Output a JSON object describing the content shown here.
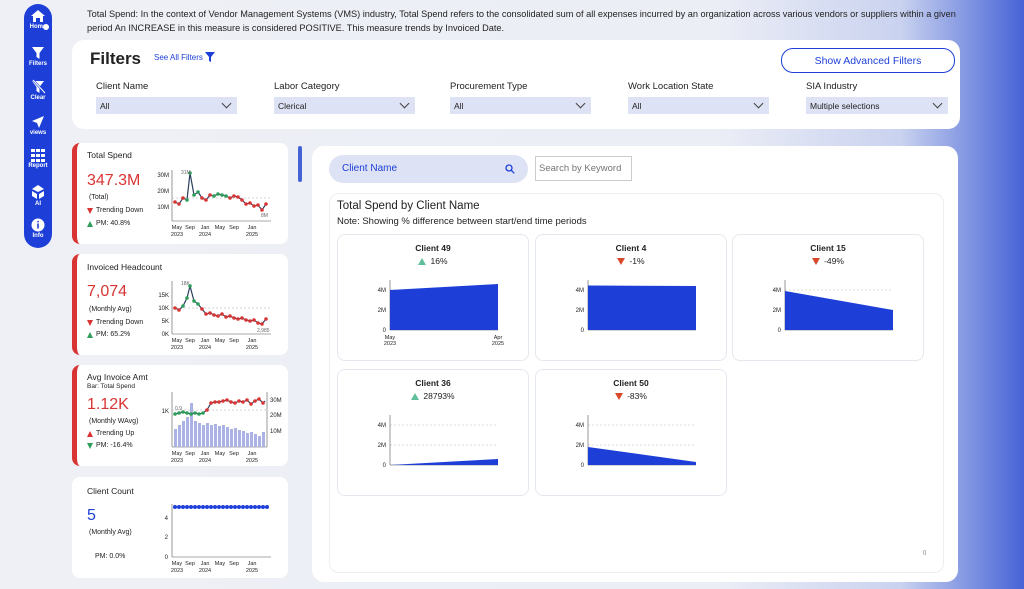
{
  "nav": [
    {
      "label": "Home",
      "icon": "home-icon"
    },
    {
      "label": "Filters",
      "icon": "filter-icon"
    },
    {
      "label": "Clear",
      "icon": "clear-filter-icon"
    },
    {
      "label": "views",
      "icon": "send-icon"
    },
    {
      "label": "Report",
      "icon": "grid-icon"
    },
    {
      "label": "AI",
      "icon": "ai-icon"
    },
    {
      "label": "Info",
      "icon": "info-icon"
    }
  ],
  "description": "Total Spend: In the context of Vendor Management Systems (VMS) industry, Total Spend refers to the consolidated sum of all expenses incurred by an organization across various vendors or suppliers within a given period An INCREASE in this measure is considered POSITIVE. This measure trends by Invoiced Date.",
  "filters": {
    "title": "Filters",
    "see_all": "See All Filters",
    "advanced_button": "Show Advanced Filters",
    "items": [
      {
        "label": "Client Name",
        "value": "All"
      },
      {
        "label": "Labor Category",
        "value": "Clerical"
      },
      {
        "label": "Procurement Type",
        "value": "All"
      },
      {
        "label": "Work Location State",
        "value": "All"
      },
      {
        "label": "SIA Industry",
        "value": "Multiple selections"
      }
    ]
  },
  "kpis": {
    "total_spend": {
      "title": "Total Spend",
      "value": "347.3M",
      "note": "(Total)",
      "trend": "Trending Down",
      "pm": "PM: 40.8%",
      "y_ticks": [
        "30M",
        "20M",
        "10M"
      ],
      "peak_label": "31M",
      "end_label": "8M",
      "x_ticks": [
        "May",
        "Sep",
        "Jan",
        "May",
        "Sep",
        "Jan"
      ],
      "years": [
        "2023",
        "2024",
        "2025"
      ]
    },
    "invoiced_headcount": {
      "title": "Invoiced Headcount",
      "value": "7,074",
      "note": "(Monthly Avg)",
      "trend": "Trending Down",
      "pm": "PM: 65.2%",
      "y_ticks": [
        "15K",
        "10K",
        "5K",
        "0K"
      ],
      "peak_label": "18K",
      "end_label": "2,985",
      "x_ticks": [
        "May",
        "Sep",
        "Jan",
        "May",
        "Sep",
        "Jan"
      ],
      "years": [
        "2023",
        "2024",
        "2025"
      ]
    },
    "avg_invoice": {
      "title": "Avg Invoice Amt",
      "subtitle": "Bar: Total Spend",
      "value": "1.12K",
      "note": "(Monthly WAvg)",
      "trend": "Trending Up",
      "pm": "PM: -16.4%",
      "y_ticks_left": [
        "1K"
      ],
      "y_ticks_right": [
        "30M",
        "20M",
        "10M"
      ],
      "start_label": "0.9",
      "x_ticks": [
        "May",
        "Sep",
        "Jan",
        "May",
        "Sep",
        "Jan"
      ],
      "years": [
        "2023",
        "2024",
        "2025"
      ]
    },
    "client_count": {
      "title": "Client Count",
      "value": "5",
      "note": "(Monthly Avg)",
      "pm": "PM: 0.0%",
      "y_ticks": [
        "4",
        "2",
        "0"
      ],
      "x_ticks": [
        "May",
        "Sep",
        "Jan",
        "May",
        "Sep",
        "Jan"
      ],
      "years": [
        "2023",
        "2024",
        "2025"
      ]
    }
  },
  "main": {
    "client_pill": "Client Name",
    "search_placeholder": "Search by Keyword",
    "title": "Total Spend by Client Name",
    "note": "Note: Showing % difference between start/end time periods",
    "tiny_mark": "()"
  },
  "chart_data": {
    "type": "area",
    "title": "Total Spend by Client Name",
    "y_ticks": [
      "4M",
      "2M",
      "0"
    ],
    "x_ticks": [
      {
        "label": "May",
        "year": "2023"
      },
      {
        "label": "Apr",
        "year": "2025"
      }
    ],
    "series": [
      {
        "name": "Client 49",
        "pct": "16%",
        "direction": "up",
        "start": 4.0,
        "end": 4.6
      },
      {
        "name": "Client 4",
        "pct": "-1%",
        "direction": "down",
        "start": 4.45,
        "end": 4.4
      },
      {
        "name": "Client 15",
        "pct": "-49%",
        "direction": "down",
        "start": 3.9,
        "end": 2.0
      },
      {
        "name": "Client 36",
        "pct": "28793%",
        "direction": "up",
        "start": 0.0,
        "end": 0.6
      },
      {
        "name": "Client 50",
        "pct": "-83%",
        "direction": "down",
        "start": 1.8,
        "end": 0.3
      }
    ],
    "colors": {
      "area": "#1d3fd8",
      "up": "#5fbf9a",
      "down": "#d9482b"
    }
  },
  "colors": {
    "brand_blue": "#1d3fd8",
    "negative_red": "#d93434",
    "positive_green": "#2e9e5a",
    "bar_lavender": "#aab3e3"
  }
}
